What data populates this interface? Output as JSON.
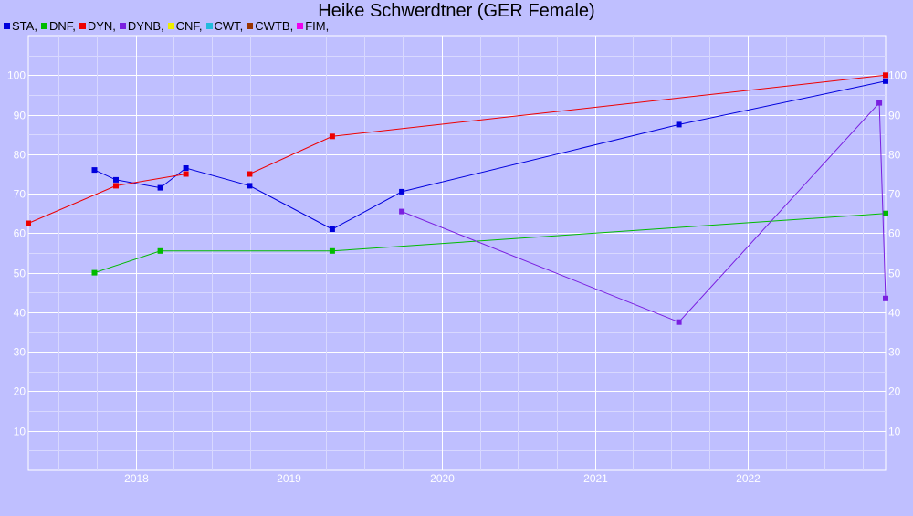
{
  "chart_data": {
    "type": "line",
    "title": "Heike Schwerdtner (GER Female)",
    "xlabel": "",
    "ylabel": "",
    "ylim": [
      0,
      110
    ],
    "xlim": [
      "2017-04-20",
      "2022-11-25"
    ],
    "y_ticks": [
      10,
      20,
      30,
      40,
      50,
      60,
      70,
      80,
      90,
      100
    ],
    "x_ticks": [
      {
        "label": "2018",
        "date": "2018-01-01"
      },
      {
        "label": "2019",
        "date": "2019-01-01"
      },
      {
        "label": "2020",
        "date": "2020-01-01"
      },
      {
        "label": "2021",
        "date": "2021-01-01"
      },
      {
        "label": "2022",
        "date": "2022-01-01"
      }
    ],
    "grid": true,
    "legend_position": "top-left",
    "legend": [
      {
        "label": "STA,",
        "color": "#0000dd"
      },
      {
        "label": "DNF,",
        "color": "#00bb00"
      },
      {
        "label": "DYN,",
        "color": "#ee0000"
      },
      {
        "label": "DYNB,",
        "color": "#7a1fe0"
      },
      {
        "label": "CNF,",
        "color": "#eeee00"
      },
      {
        "label": "CWT,",
        "color": "#22bbdd"
      },
      {
        "label": "CWTB,",
        "color": "#993300"
      },
      {
        "label": "FIM,",
        "color": "#ee00ee"
      }
    ],
    "series": [
      {
        "name": "STA",
        "color": "#0000dd",
        "points": [
          {
            "x": "2017-09-25",
            "y": 76
          },
          {
            "x": "2017-11-15",
            "y": 73.5
          },
          {
            "x": "2018-03-01",
            "y": 71.5
          },
          {
            "x": "2018-05-01",
            "y": 76.5
          },
          {
            "x": "2018-09-30",
            "y": 72
          },
          {
            "x": "2019-04-15",
            "y": 61
          },
          {
            "x": "2019-09-28",
            "y": 70.5
          },
          {
            "x": "2021-07-20",
            "y": 87.5
          },
          {
            "x": "2022-11-25",
            "y": 98.5
          }
        ]
      },
      {
        "name": "DNF",
        "color": "#00bb00",
        "points": [
          {
            "x": "2017-09-25",
            "y": 50
          },
          {
            "x": "2018-03-01",
            "y": 55.5
          },
          {
            "x": "2019-04-15",
            "y": 55.5
          },
          {
            "x": "2022-11-25",
            "y": 65
          }
        ]
      },
      {
        "name": "DYN",
        "color": "#ee0000",
        "points": [
          {
            "x": "2017-04-20",
            "y": 62.5
          },
          {
            "x": "2017-11-15",
            "y": 72
          },
          {
            "x": "2018-05-01",
            "y": 75
          },
          {
            "x": "2018-09-30",
            "y": 75
          },
          {
            "x": "2019-04-15",
            "y": 84.5
          },
          {
            "x": "2022-11-25",
            "y": 100
          }
        ]
      },
      {
        "name": "DYNB",
        "color": "#7a1fe0",
        "points": [
          {
            "x": "2019-09-28",
            "y": 65.5
          },
          {
            "x": "2021-07-20",
            "y": 37.5
          },
          {
            "x": "2022-11-10",
            "y": 93
          },
          {
            "x": "2022-11-25",
            "y": 43.5
          }
        ]
      }
    ]
  }
}
